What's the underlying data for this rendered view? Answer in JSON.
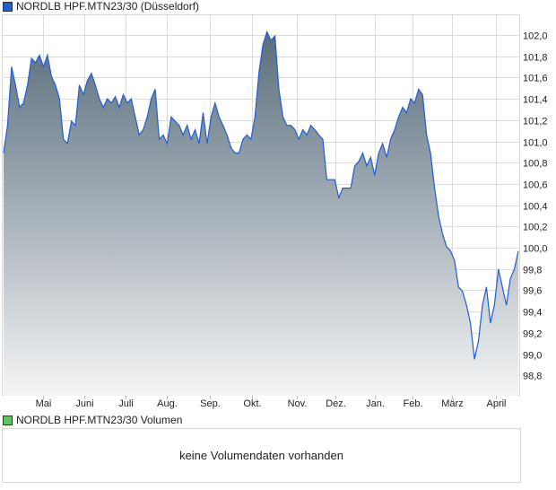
{
  "title": "NORDLB HPF.MTN23/30 (Düsseldorf)",
  "volume_title": "NORDLB HPF.MTN23/30 Volumen",
  "volume_message": "keine Volumendaten vorhanden",
  "colors": {
    "line": "#1f5fcf",
    "fill_top": "#5a6d7c",
    "fill_bottom": "#f4f5f6",
    "volume_legend": "#5cc85c",
    "price_legend": "#1f5fcf"
  },
  "chart_data": {
    "type": "area",
    "title": "NORDLB HPF.MTN23/30 (Düsseldorf)",
    "xlabel": "",
    "ylabel": "",
    "ylim": [
      98.65,
      102.18
    ],
    "yticks": [
      "102,0",
      "101,8",
      "101,6",
      "101,4",
      "101,2",
      "101,0",
      "100,8",
      "100,6",
      "100,4",
      "100,2",
      "100,0",
      "99,8",
      "99,6",
      "99,4",
      "99,2",
      "99,0",
      "98,8"
    ],
    "ytick_values": [
      102.0,
      101.8,
      101.6,
      101.4,
      101.2,
      101.0,
      100.8,
      100.6,
      100.4,
      100.2,
      100.0,
      99.8,
      99.6,
      99.4,
      99.2,
      99.0,
      98.8
    ],
    "months": [
      "Mai",
      "Juni",
      "Juli",
      "Aug.",
      "Sep.",
      "Okt.",
      "Nov.",
      "Dez.",
      "Jan.",
      "Feb.",
      "März",
      "April"
    ],
    "month_positions": [
      0.078,
      0.158,
      0.237,
      0.318,
      0.401,
      0.482,
      0.57,
      0.644,
      0.72,
      0.793,
      0.87,
      0.955
    ],
    "grid": true,
    "values": [
      100.89,
      101.15,
      101.7,
      101.53,
      101.32,
      101.36,
      101.53,
      101.78,
      101.74,
      101.81,
      101.7,
      101.81,
      101.61,
      101.53,
      101.4,
      101.02,
      100.98,
      101.19,
      101.15,
      101.53,
      101.44,
      101.57,
      101.64,
      101.53,
      101.4,
      101.32,
      101.4,
      101.36,
      101.42,
      101.32,
      101.44,
      101.36,
      101.4,
      101.23,
      101.06,
      101.11,
      101.23,
      101.4,
      101.49,
      101.02,
      101.06,
      100.98,
      101.23,
      101.19,
      101.15,
      101.06,
      101.15,
      101.02,
      101.11,
      100.98,
      101.27,
      100.98,
      101.23,
      101.36,
      101.23,
      101.15,
      101.06,
      100.94,
      100.89,
      100.89,
      101.02,
      101.06,
      101.02,
      101.23,
      101.65,
      101.91,
      102.03,
      101.95,
      101.99,
      101.49,
      101.23,
      101.15,
      101.15,
      101.11,
      101.02,
      101.11,
      101.06,
      101.15,
      101.11,
      101.06,
      101.02,
      100.64,
      100.64,
      100.64,
      100.47,
      100.56,
      100.56,
      100.56,
      100.77,
      100.81,
      100.89,
      100.77,
      100.85,
      100.68,
      100.89,
      100.98,
      100.85,
      101.02,
      101.11,
      101.23,
      101.32,
      101.27,
      101.4,
      101.36,
      101.49,
      101.44,
      101.06,
      100.89,
      100.56,
      100.3,
      100.13,
      100.01,
      99.97,
      99.88,
      99.63,
      99.59,
      99.46,
      99.29,
      98.95,
      99.12,
      99.46,
      99.63,
      99.29,
      99.46,
      99.8,
      99.63,
      99.46,
      99.71,
      99.8,
      99.97
    ]
  }
}
